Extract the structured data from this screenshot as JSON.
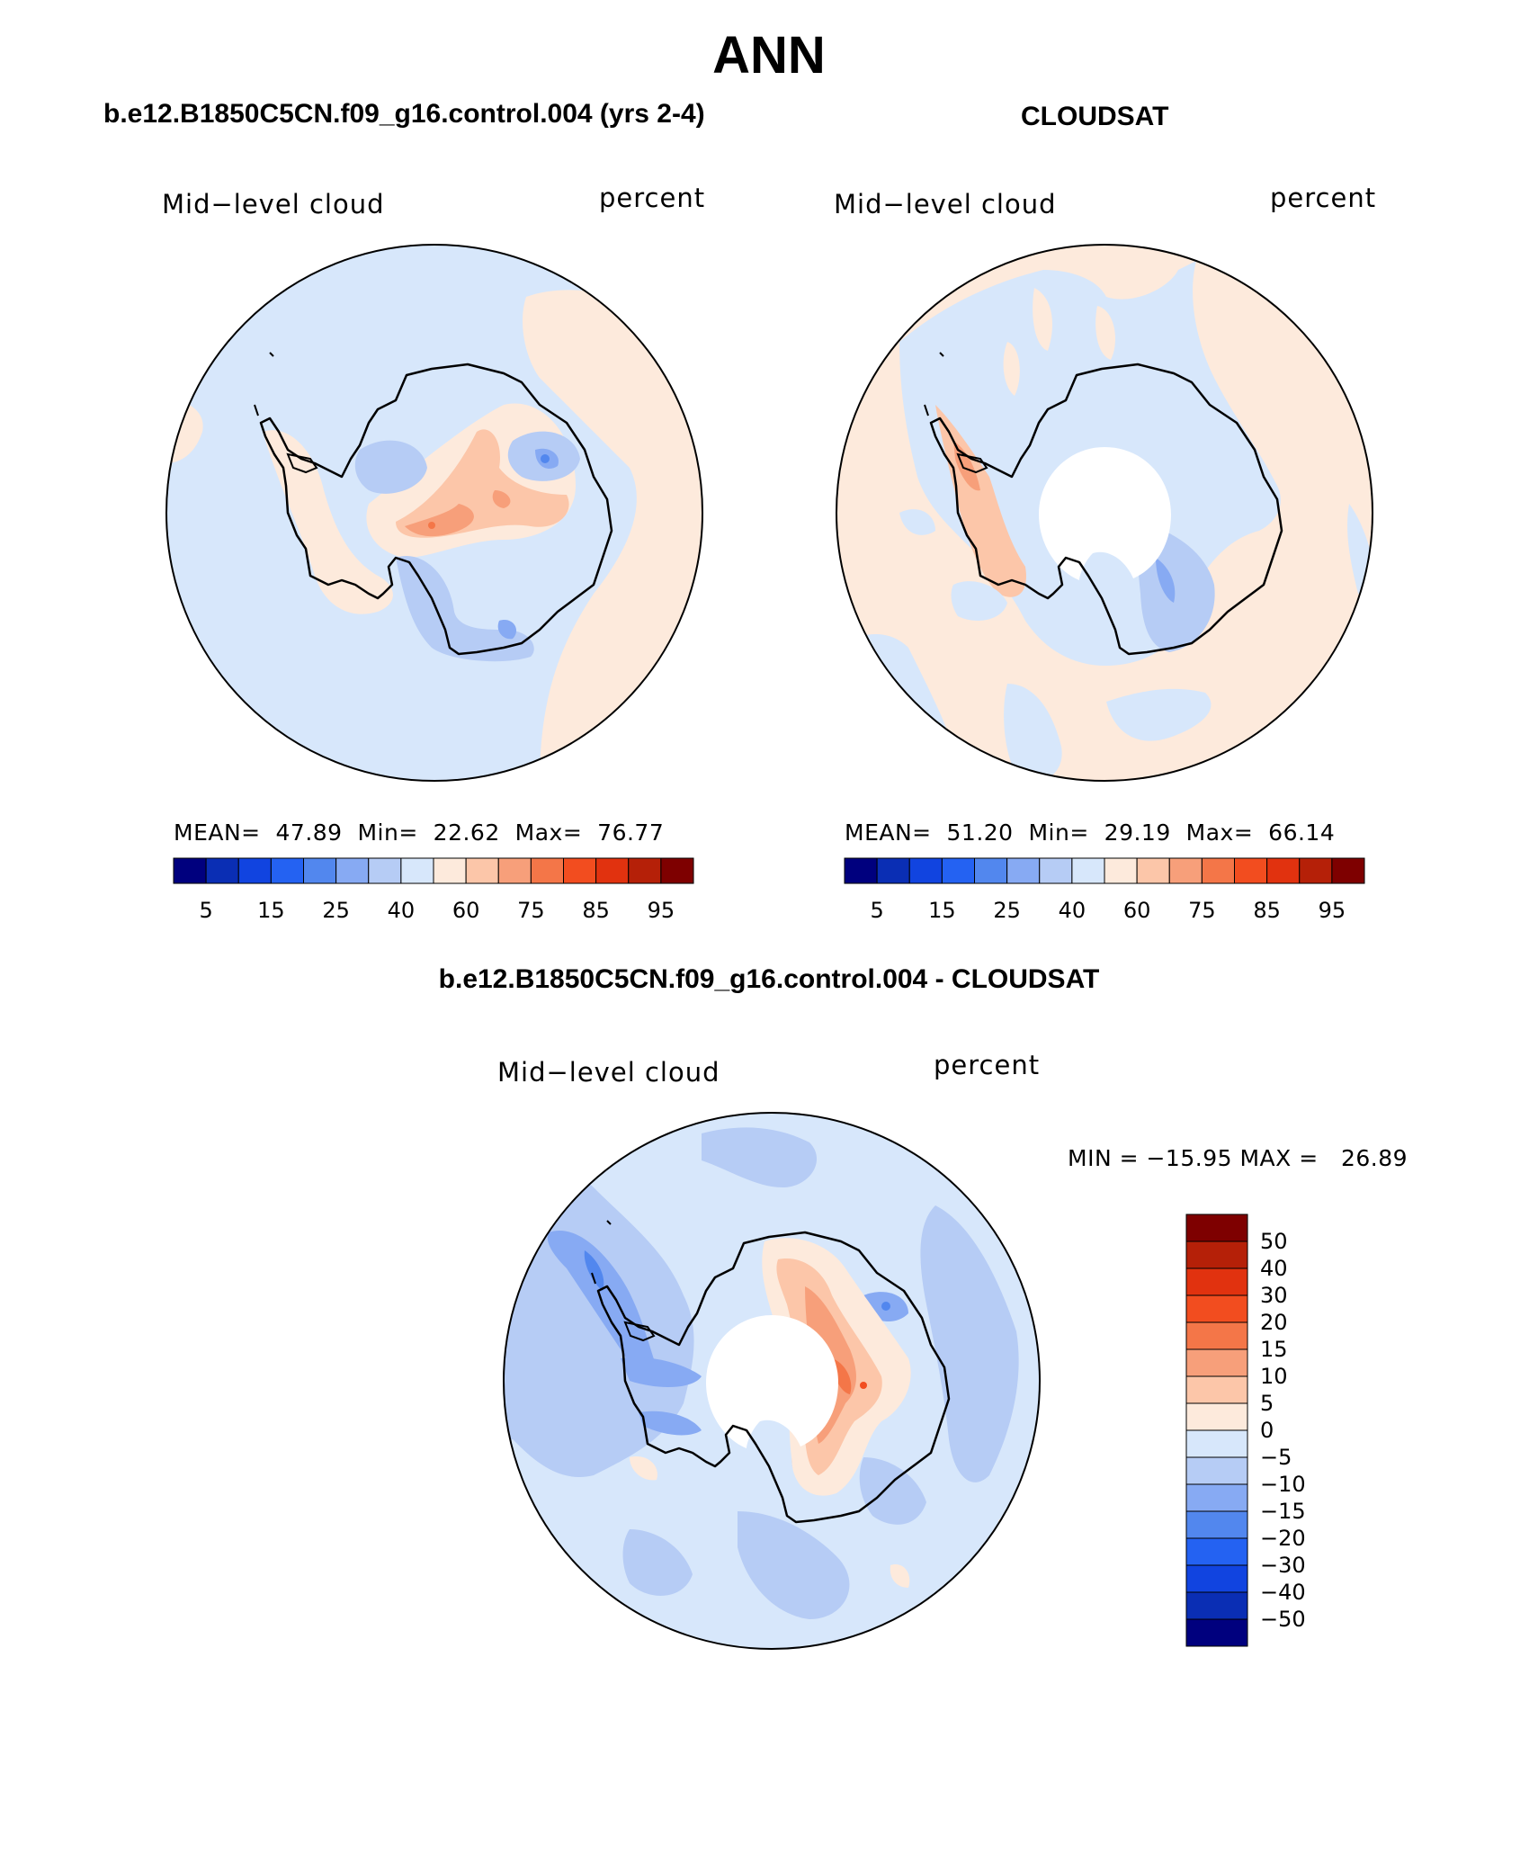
{
  "header": {
    "main_title": "ANN",
    "left_title": "b.e12.B1850C5CN.f09_g16.control.004 (yrs 2-4)",
    "right_title": "CLOUDSAT",
    "diff_title": "b.e12.B1850C5CN.f09_g16.control.004 - CLOUDSAT"
  },
  "panels": {
    "model": {
      "variable": "Mid−level cloud",
      "units": "percent",
      "stats": "MEAN=  47.89  Min=  22.62  Max=  76.77"
    },
    "obs": {
      "variable": "Mid−level cloud",
      "units": "percent",
      "stats": "MEAN=  51.20  Min=  29.19  Max=  66.14"
    },
    "diff": {
      "variable": "Mid−level cloud",
      "units": "percent",
      "stats": "MIN = −15.95 MAX =   26.89"
    }
  },
  "colorbar_main": {
    "tick_labels": [
      "5",
      "15",
      "25",
      "40",
      "60",
      "75",
      "85",
      "95"
    ],
    "colors": [
      "#00007e",
      "#0a2eb4",
      "#1144e0",
      "#2462f2",
      "#5287ee",
      "#87aaf3",
      "#b6ccf5",
      "#d7e7fb",
      "#fdeadc",
      "#fcc6a9",
      "#f79f7a",
      "#f47648",
      "#f24d1f",
      "#e1320f",
      "#b52008",
      "#7e0000"
    ]
  },
  "colorbar_diff": {
    "tick_labels": [
      "50",
      "40",
      "30",
      "20",
      "15",
      "10",
      "5",
      "0",
      "−5",
      "−10",
      "−15",
      "−20",
      "−30",
      "−40",
      "−50"
    ],
    "colors": [
      "#7e0000",
      "#b52008",
      "#e1320f",
      "#f24d1f",
      "#f47648",
      "#f79f7a",
      "#fcc6a9",
      "#fdeadc",
      "#d7e7fb",
      "#b6ccf5",
      "#87aaf3",
      "#5287ee",
      "#2462f2",
      "#1144e0",
      "#0a2eb4",
      "#00007e"
    ]
  },
  "colors": {
    "light_blue": "#d7e7fb",
    "light_orange": "#fdeadc",
    "mid_blue": "#b6ccf5",
    "blue": "#87aaf3",
    "dark_blue": "#5287ee",
    "orange": "#fcc6a9",
    "dark_orange": "#f79f7a",
    "red": "#f47648"
  }
}
